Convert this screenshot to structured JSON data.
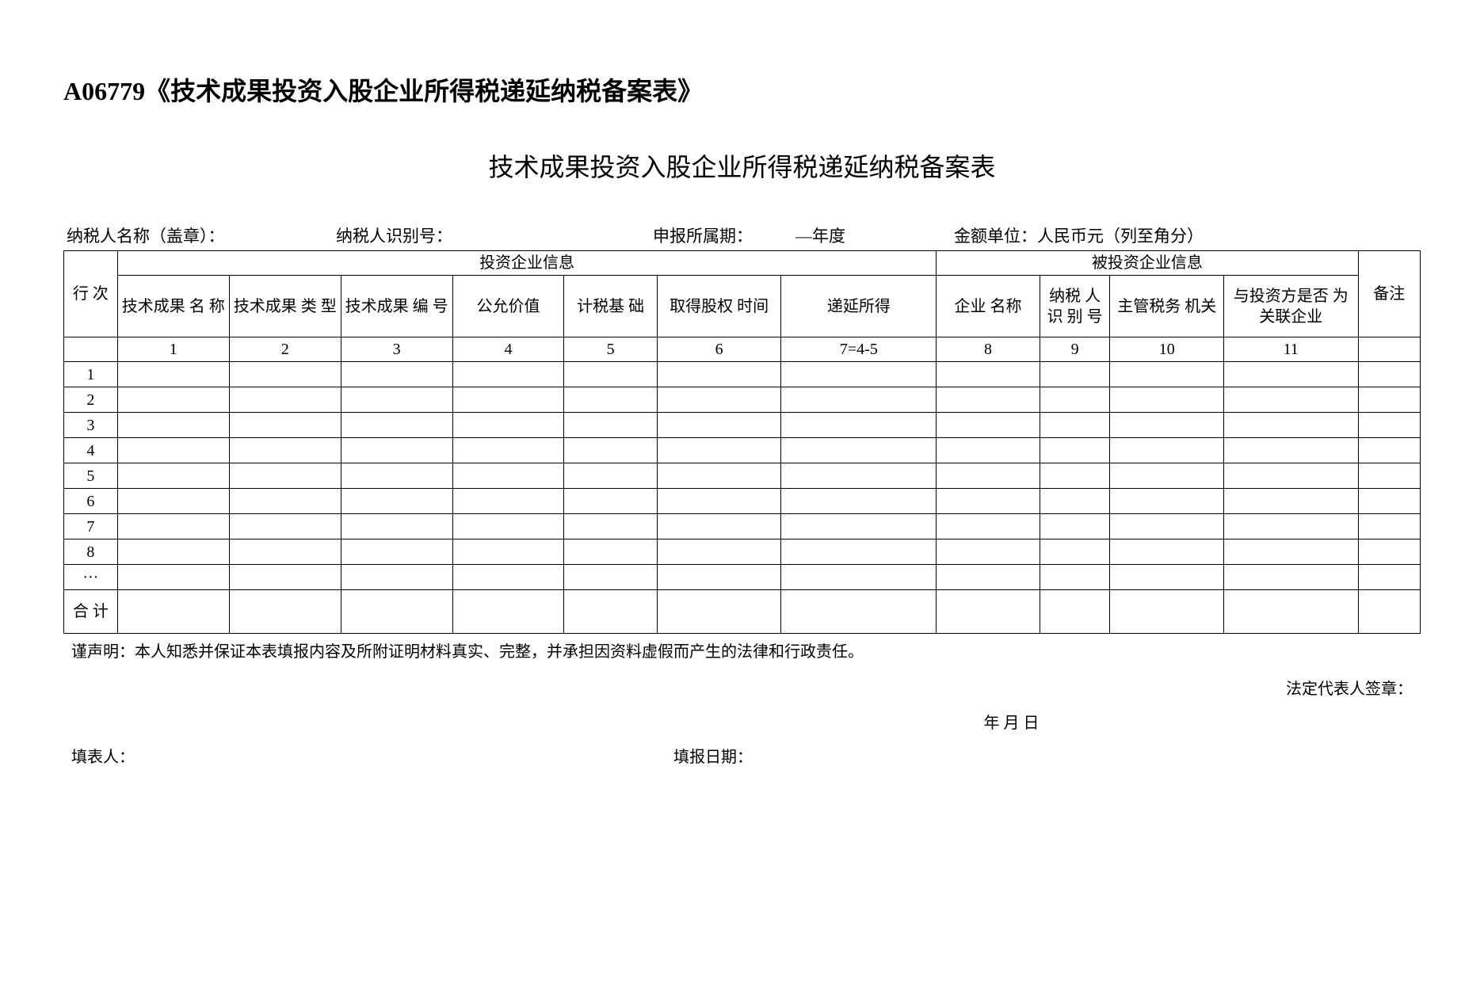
{
  "doc_title": "A06779《技术成果投资入股企业所得税递延纳税备案表》",
  "form_title": "技术成果投资入股企业所得税递延纳税备案表",
  "info": {
    "taxpayer_name_label": "纳税人名称（盖章）：",
    "taxpayer_id_label": "纳税人识别号：",
    "period_label": "申报所属期：",
    "period_value": "—年度",
    "amount_unit_label": "金额单位：人民币元（列至角分）"
  },
  "table": {
    "group_investor": "投资企业信息",
    "group_investee": "被投资企业信息",
    "row_header": "行 次",
    "remark_header": "备注",
    "columns": [
      "技术成果 名 称",
      "技术成果 类 型",
      "技术成果 编 号",
      "公允价值",
      "计税基 础",
      "取得股权 时间",
      "递延所得",
      "企业 名称",
      "纳税 人 识 别 号",
      "主管税务 机关",
      "与投资方是否 为 关联企业"
    ],
    "col_nums": [
      "1",
      "2",
      "3",
      "4",
      "5",
      "6",
      "7=4-5",
      "8",
      "9",
      "10",
      "11"
    ],
    "data_rows": [
      "1",
      "2",
      "3",
      "4",
      "5",
      "6",
      "7",
      "8",
      "···"
    ],
    "total_label": "合 计"
  },
  "footer": {
    "declaration": "谨声明：本人知悉并保证本表填报内容及所附证明材料真实、完整，并承担因资料虚假而产生的法律和行政责任。",
    "legal_rep_sign": "法定代表人签章：",
    "date_placeholder": "年 月 日",
    "preparer_label": "填表人：",
    "fill_date_label": "填报日期："
  }
}
